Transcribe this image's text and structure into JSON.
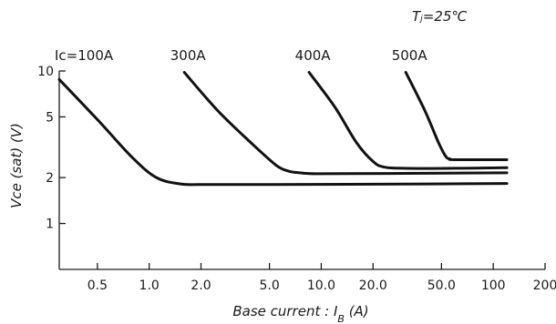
{
  "chart_data": {
    "type": "line",
    "title": "",
    "annotation": "Tⱼ=25℃",
    "xlabel": "Base current : I_B (A)",
    "xlabel_parts": {
      "main": "Base current : ",
      "var": "I",
      "sub": "B",
      "unit": " (A)"
    },
    "ylabel": "Vce (sat) (V)",
    "x_scale": "log",
    "y_scale": "log",
    "xlim": [
      0.3,
      200
    ],
    "ylim": [
      0.5,
      10
    ],
    "grid": false,
    "x_ticks": [
      0.5,
      1.0,
      2.0,
      5.0,
      10.0,
      20.0,
      50.0,
      100,
      200
    ],
    "x_tick_labels": [
      "0.5",
      "1.0",
      "2.0",
      "5.0",
      "10.0",
      "20.0",
      "50.0",
      "100",
      "200"
    ],
    "y_ticks": [
      1,
      2,
      5,
      10
    ],
    "y_tick_labels": [
      "1",
      "2",
      "5",
      "10"
    ],
    "series": [
      {
        "name": "I_C=100A",
        "label": "Iᴄ=100A",
        "x": [
          0.3,
          0.5,
          0.8,
          1.1,
          1.5,
          2.0,
          5.0,
          20.0,
          120
        ],
        "y": [
          8.8,
          4.8,
          2.7,
          2.0,
          1.82,
          1.8,
          1.8,
          1.81,
          1.83
        ]
      },
      {
        "name": "I_C=300A",
        "label": "300A",
        "x": [
          1.6,
          2.5,
          4.0,
          5.5,
          6.5,
          7.5,
          10.0,
          30.0,
          120
        ],
        "y": [
          9.8,
          5.5,
          3.3,
          2.4,
          2.2,
          2.15,
          2.12,
          2.13,
          2.15
        ]
      },
      {
        "name": "I_C=400A",
        "label": "400A",
        "x": [
          8.5,
          12.0,
          16.0,
          20.0,
          23.0,
          30.0,
          60.0,
          120
        ],
        "y": [
          9.8,
          5.8,
          3.4,
          2.55,
          2.35,
          2.3,
          2.3,
          2.32
        ]
      },
      {
        "name": "I_C=500A",
        "label": "500A",
        "x": [
          31.0,
          40.0,
          48.0,
          53.0,
          56.0,
          60.0,
          120
        ],
        "y": [
          9.8,
          5.5,
          3.4,
          2.75,
          2.65,
          2.62,
          2.62
        ]
      }
    ]
  }
}
